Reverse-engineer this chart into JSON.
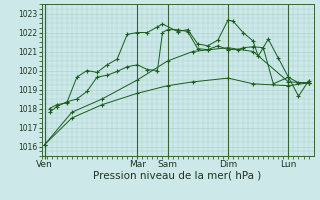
{
  "xlabel": "Pression niveau de la mer( hPa )",
  "background_color": "#cce8e8",
  "grid_color": "#aacccc",
  "line_color": "#1a5c1a",
  "vline_color": "#336633",
  "ylim": [
    1015.5,
    1023.4
  ],
  "xlim": [
    0,
    27
  ],
  "day_labels": [
    "Ven",
    "Mar",
    "Sam",
    "Dim",
    "Lun"
  ],
  "day_positions": [
    0.3,
    9.5,
    12.5,
    18.5,
    24.5
  ],
  "vline_positions": [
    0.3,
    9.5,
    12.5,
    18.5,
    24.5
  ],
  "series": {
    "line1_smooth": {
      "x": [
        0.3,
        3,
        6,
        9.5,
        12.5,
        15,
        18.5,
        21,
        24.5,
        26.5
      ],
      "y": [
        1016.1,
        1017.5,
        1018.2,
        1018.8,
        1019.2,
        1019.4,
        1019.6,
        1019.3,
        1019.2,
        1019.35
      ]
    },
    "line2_smooth": {
      "x": [
        0.3,
        3,
        6,
        9.5,
        12.5,
        15,
        18.5,
        21,
        24.5,
        26.5
      ],
      "y": [
        1016.1,
        1017.8,
        1018.5,
        1019.5,
        1020.5,
        1021.0,
        1021.2,
        1021.0,
        1019.4,
        1019.35
      ]
    },
    "line3_jagged": {
      "x": [
        0.8,
        1.5,
        2.5,
        3.5,
        4.5,
        5.5,
        6.5,
        7.5,
        8.5,
        9.5,
        10.5,
        11.5,
        12.0,
        12.5,
        13.5,
        14.5,
        15.5,
        16.5,
        17.5,
        18.5,
        19.5,
        20,
        21,
        22,
        23,
        24.5,
        25.5,
        26.5
      ],
      "y": [
        1017.8,
        1018.1,
        1018.35,
        1018.5,
        1018.9,
        1019.65,
        1019.75,
        1019.95,
        1020.2,
        1020.3,
        1020.05,
        1020.0,
        1022.0,
        1022.15,
        1022.15,
        1022.05,
        1021.15,
        1021.1,
        1021.3,
        1021.1,
        1021.1,
        1021.2,
        1021.25,
        1021.2,
        1019.3,
        1019.65,
        1019.35,
        1019.35
      ]
    },
    "line4_top": {
      "x": [
        0.8,
        1.5,
        2.5,
        3.5,
        4.5,
        5.5,
        6.5,
        7.5,
        8.5,
        9.5,
        10.5,
        11.5,
        12.0,
        13.5,
        14.5,
        15.5,
        16.5,
        17.5,
        18.5,
        19,
        20,
        21,
        21.5,
        22.5,
        23.5,
        24.5,
        25.5,
        26.5
      ],
      "y": [
        1018.0,
        1018.2,
        1018.3,
        1019.65,
        1020.0,
        1019.9,
        1020.3,
        1020.6,
        1021.9,
        1022.0,
        1022.0,
        1022.3,
        1022.45,
        1022.05,
        1022.15,
        1021.4,
        1021.3,
        1021.6,
        1022.65,
        1022.6,
        1022.0,
        1021.55,
        1020.75,
        1021.65,
        1020.65,
        1019.65,
        1018.65,
        1019.45
      ]
    }
  },
  "yticks": [
    1016,
    1017,
    1018,
    1019,
    1020,
    1021,
    1022,
    1023
  ],
  "ytick_fontsize": 5.5,
  "xtick_fontsize": 6.5,
  "xlabel_fontsize": 7.5
}
